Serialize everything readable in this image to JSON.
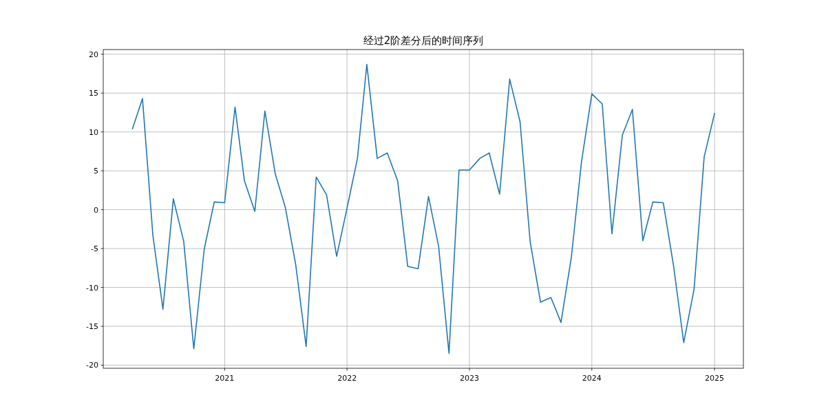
{
  "chart_data": {
    "type": "line",
    "title": "经过2阶差分后的时间序列",
    "x": [
      "2020-04",
      "2020-05",
      "2020-06",
      "2020-07",
      "2020-08",
      "2020-09",
      "2020-10",
      "2020-11",
      "2020-12",
      "2021-01",
      "2021-02",
      "2021-03",
      "2021-04",
      "2021-05",
      "2021-06",
      "2021-07",
      "2021-08",
      "2021-09",
      "2021-10",
      "2021-11",
      "2021-12",
      "2022-01",
      "2022-02",
      "2022-03",
      "2022-04",
      "2022-05",
      "2022-06",
      "2022-07",
      "2022-08",
      "2022-09",
      "2022-10",
      "2022-11",
      "2022-12",
      "2023-01",
      "2023-02",
      "2023-03",
      "2023-04",
      "2023-05",
      "2023-06",
      "2023-07",
      "2023-08",
      "2023-09",
      "2023-10",
      "2023-11",
      "2023-12",
      "2024-01",
      "2024-02",
      "2024-03",
      "2024-04",
      "2024-05",
      "2024-06",
      "2024-07",
      "2024-08",
      "2024-09",
      "2024-10",
      "2024-11",
      "2024-12",
      "2025-01"
    ],
    "series": [
      {
        "color": "#1f77b4",
        "values": [
          10.4,
          14.3,
          -3.3,
          -12.8,
          1.4,
          -4.1,
          -17.9,
          -5.1,
          1.0,
          0.9,
          13.2,
          3.7,
          -0.2,
          12.7,
          4.6,
          0.3,
          -7.1,
          -17.6,
          4.2,
          1.9,
          -6.0,
          0.2,
          6.6,
          18.7,
          6.6,
          7.3,
          3.7,
          -7.3,
          -7.6,
          1.7,
          -4.7,
          -18.5,
          5.1,
          5.1,
          6.6,
          7.3,
          2.0,
          16.8,
          11.3,
          -4.1,
          -11.9,
          -11.3,
          -14.5,
          -6.1,
          6.1,
          14.9,
          13.6,
          -3.1,
          9.6,
          12.9,
          -4.0,
          1.0,
          0.9,
          -7.3,
          -17.1,
          -10.2,
          6.8,
          12.4
        ]
      }
    ],
    "xlim": [
      "2020-01-05",
      "2025-03-28"
    ],
    "xticks": [
      "2021",
      "2022",
      "2023",
      "2024",
      "2025"
    ],
    "ylim": [
      -20.4,
      20.6
    ],
    "yticks": [
      -20,
      -15,
      -10,
      -5,
      0,
      5,
      10,
      15,
      20
    ],
    "grid": true,
    "line_style": "solid",
    "marker": "none"
  }
}
